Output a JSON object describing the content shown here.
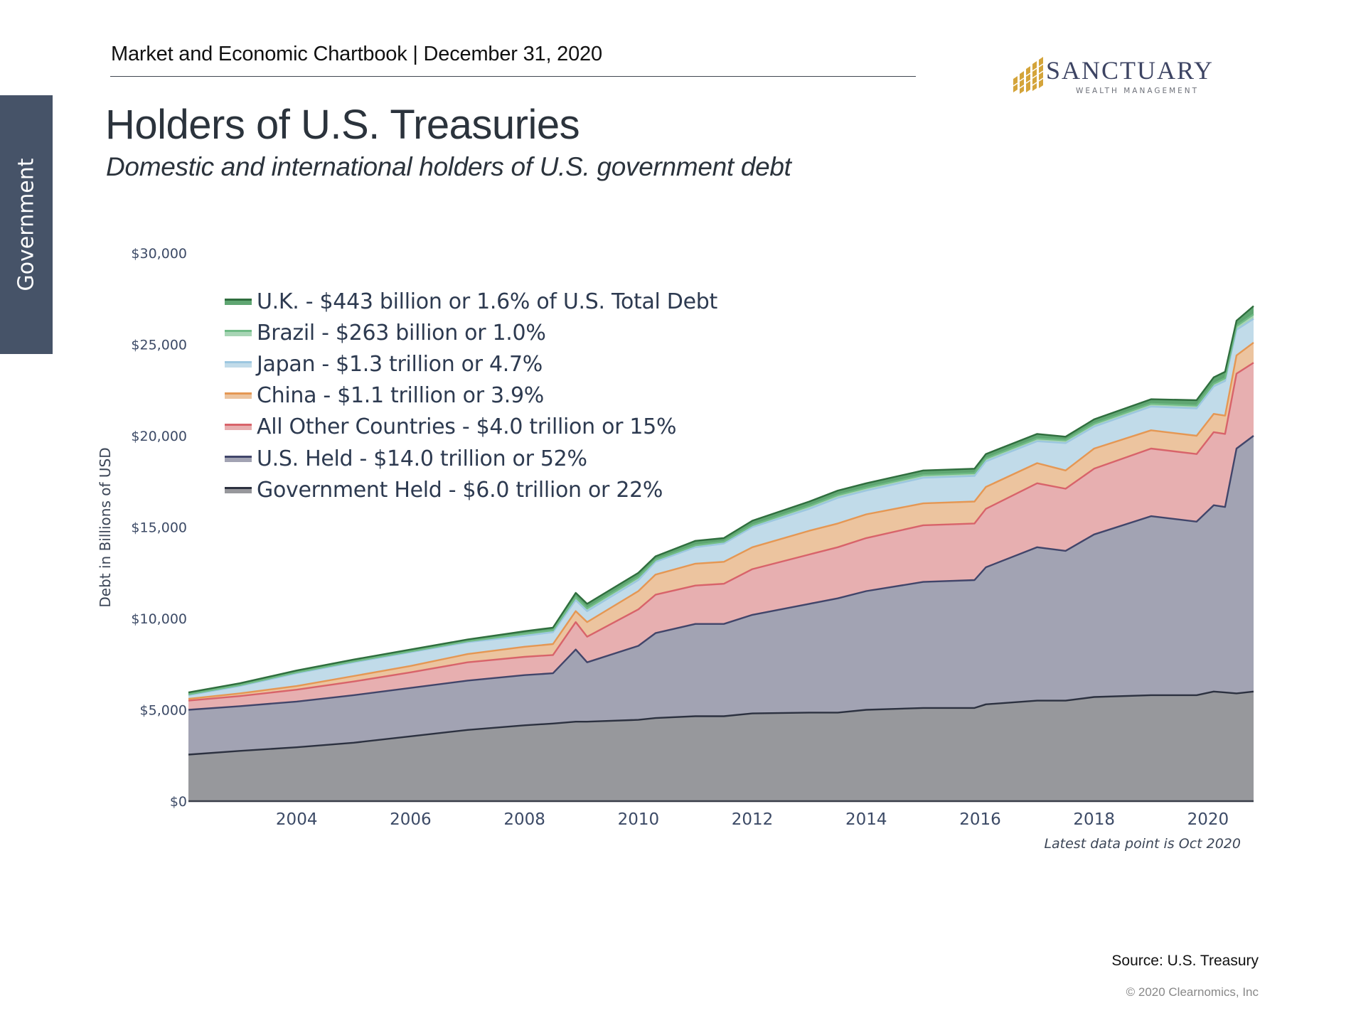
{
  "header": {
    "title": "Market and Economic Chartbook | December 31, 2020"
  },
  "sidebar": {
    "section_label": "Government"
  },
  "page": {
    "title": "Holders of U.S. Treasuries",
    "subtitle": "Domestic and international holders of U.S. government debt"
  },
  "logo": {
    "name": "SANCTUARY",
    "tagline": "WEALTH MANAGEMENT",
    "colors": {
      "mark": "#d4a43a",
      "text": "#3d4463"
    }
  },
  "chart_data": {
    "type": "area",
    "stacked": true,
    "title": "Holders of U.S. Treasuries",
    "xlabel": "",
    "ylabel": "Debt in Billions of USD",
    "ylim": [
      0,
      30000
    ],
    "xlim": [
      2002.1,
      2020.8
    ],
    "grid": false,
    "legend_position": "top-left",
    "y_ticks": [
      0,
      5000,
      10000,
      15000,
      20000,
      25000,
      30000
    ],
    "y_tick_labels": [
      "$0",
      "$5,000",
      "$10,000",
      "$15,000",
      "$20,000",
      "$25,000",
      "$30,000"
    ],
    "x_ticks": [
      2004,
      2006,
      2008,
      2010,
      2012,
      2014,
      2016,
      2018,
      2020
    ],
    "x_tick_labels": [
      "2004",
      "2006",
      "2008",
      "2010",
      "2012",
      "2014",
      "2016",
      "2018",
      "2020"
    ],
    "annotation": "Latest data point is Oct 2020",
    "x": [
      2002.1,
      2003,
      2004,
      2005,
      2006,
      2007,
      2008,
      2008.5,
      2008.9,
      2009.1,
      2010,
      2010.3,
      2011,
      2011.5,
      2012,
      2013,
      2013.5,
      2014,
      2015,
      2015.9,
      2016.1,
      2017,
      2017.5,
      2018,
      2019,
      2019.8,
      2020.1,
      2020.3,
      2020.5,
      2020.8
    ],
    "series": [
      {
        "name": "Government Held",
        "legend": "Government Held - $6.0 trillion or 22%",
        "fill": "#97989c",
        "line": "#2c3140",
        "values": [
          2550,
          2750,
          2950,
          3200,
          3550,
          3900,
          4150,
          4250,
          4350,
          4350,
          4450,
          4550,
          4650,
          4650,
          4800,
          4850,
          4850,
          5000,
          5100,
          5100,
          5300,
          5500,
          5500,
          5700,
          5800,
          5800,
          6000,
          5950,
          5900,
          6000
        ]
      },
      {
        "name": "U.S. Held",
        "legend": "U.S. Held - $14.0 trillion or 52%",
        "fill": "#a2a3b3",
        "line": "#41456a",
        "values": [
          2450,
          2450,
          2500,
          2600,
          2650,
          2700,
          2750,
          2750,
          3950,
          3250,
          4050,
          4650,
          5050,
          5050,
          5400,
          5950,
          6250,
          6500,
          6900,
          7000,
          7500,
          8400,
          8200,
          8900,
          9800,
          9500,
          10200,
          10150,
          13400,
          14000
        ]
      },
      {
        "name": "All Other Countries",
        "legend": "All Other Countries - $4.0 trillion or 15%",
        "fill": "#e7afb0",
        "line": "#d8636a",
        "values": [
          500,
          550,
          650,
          750,
          850,
          1000,
          1000,
          1000,
          1500,
          1400,
          2000,
          2100,
          2100,
          2200,
          2500,
          2700,
          2800,
          2900,
          3100,
          3100,
          3200,
          3500,
          3400,
          3600,
          3700,
          3700,
          4000,
          4000,
          4100,
          4000
        ]
      },
      {
        "name": "China",
        "legend": "China - $1.1 trillion or 3.9%",
        "fill": "#ecc49f",
        "line": "#e59753",
        "values": [
          100,
          150,
          200,
          300,
          350,
          450,
          550,
          600,
          600,
          800,
          1000,
          1100,
          1200,
          1200,
          1200,
          1300,
          1300,
          1300,
          1200,
          1200,
          1200,
          1100,
          1000,
          1100,
          1000,
          1000,
          1000,
          1000,
          1000,
          1100
        ]
      },
      {
        "name": "Japan",
        "legend": "Japan - $1.3 trillion or 4.7%",
        "fill": "#c1dbe9",
        "line": "#9cc7e0",
        "values": [
          200,
          400,
          700,
          750,
          750,
          650,
          600,
          650,
          600,
          600,
          600,
          700,
          900,
          1000,
          1100,
          1200,
          1400,
          1300,
          1400,
          1400,
          1400,
          1200,
          1500,
          1200,
          1300,
          1500,
          1500,
          1900,
          1400,
          1300
        ]
      },
      {
        "name": "Brazil",
        "legend": "Brazil - $263 billion or 1.0%",
        "fill": "#a8d5b5",
        "line": "#6fbb85",
        "values": [
          50,
          50,
          50,
          50,
          50,
          50,
          100,
          100,
          150,
          150,
          150,
          100,
          100,
          100,
          100,
          150,
          150,
          150,
          150,
          150,
          150,
          150,
          150,
          150,
          150,
          150,
          150,
          150,
          200,
          250
        ]
      },
      {
        "name": "U.K.",
        "legend": "U.K. - $443 billion or 1.6% of U.S. Total Debt",
        "fill": "#5fa672",
        "line": "#2f6e3e",
        "values": [
          100,
          100,
          100,
          100,
          100,
          100,
          150,
          150,
          250,
          250,
          250,
          200,
          250,
          200,
          250,
          250,
          250,
          250,
          250,
          250,
          250,
          250,
          200,
          250,
          250,
          300,
          350,
          350,
          300,
          450
        ]
      }
    ]
  },
  "footer": {
    "source": "Source: U.S. Treasury",
    "copyright": "© 2020 Clearnomics, Inc"
  }
}
